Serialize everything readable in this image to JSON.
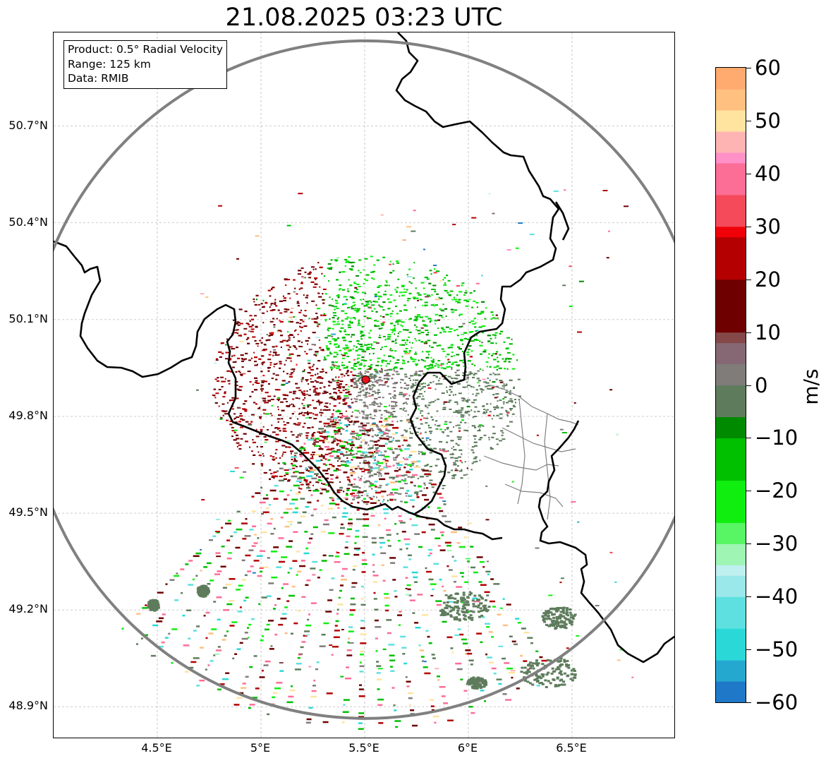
{
  "title": "21.08.2025 03:23 UTC",
  "info_box": {
    "product": "Product: 0.5° Radial Velocity",
    "range": "Range: 125 km",
    "data": "Data: RMIB"
  },
  "map": {
    "lon_range": [
      4.0,
      7.0
    ],
    "lat_range": [
      48.8,
      50.99
    ],
    "radar_site": {
      "lon": 5.505,
      "lat": 49.914
    },
    "range_km": 125,
    "lat_ticks": [
      {
        "value": 50.7,
        "label": "50.7°N"
      },
      {
        "value": 50.4,
        "label": "50.4°N"
      },
      {
        "value": 50.1,
        "label": "50.1°N"
      },
      {
        "value": 49.8,
        "label": "49.8°N"
      },
      {
        "value": 49.5,
        "label": "49.5°N"
      },
      {
        "value": 49.2,
        "label": "49.2°N"
      },
      {
        "value": 48.9,
        "label": "48.9°N"
      }
    ],
    "lon_ticks": [
      {
        "value": 4.5,
        "label": "4.5°E"
      },
      {
        "value": 5.0,
        "label": "5°E"
      },
      {
        "value": 5.5,
        "label": "5.5°E"
      },
      {
        "value": 6.0,
        "label": "6°E"
      },
      {
        "value": 6.5,
        "label": "6.5°E"
      }
    ],
    "colors": {
      "range_ring": "#808080",
      "border": "#000000",
      "region_border": "#808080",
      "grid": "#b0b0b0",
      "radar_marker": "#e8141e"
    }
  },
  "colorbar": {
    "unit": "m/s",
    "min": -60,
    "max": 60,
    "ticks": [
      {
        "value": 60,
        "label": "60"
      },
      {
        "value": 50,
        "label": "50"
      },
      {
        "value": 40,
        "label": "40"
      },
      {
        "value": 30,
        "label": "30"
      },
      {
        "value": 20,
        "label": "20"
      },
      {
        "value": 10,
        "label": "10"
      },
      {
        "value": 0,
        "label": "0"
      },
      {
        "value": -10,
        "label": "−10"
      },
      {
        "value": -20,
        "label": "−20"
      },
      {
        "value": -30,
        "label": "−30"
      },
      {
        "value": -40,
        "label": "−40"
      },
      {
        "value": -50,
        "label": "−50"
      },
      {
        "value": -60,
        "label": "−60"
      }
    ],
    "stops": [
      {
        "value": -60,
        "color": "#1f78c8"
      },
      {
        "value": -56,
        "color": "#24a8d0"
      },
      {
        "value": -52,
        "color": "#2ad8d8"
      },
      {
        "value": -46,
        "color": "#5ee0e0"
      },
      {
        "value": -40,
        "color": "#9ae8ea"
      },
      {
        "value": -36,
        "color": "#bff0f0"
      },
      {
        "value": -34,
        "color": "#9ef5b4"
      },
      {
        "value": -30,
        "color": "#58f564"
      },
      {
        "value": -26,
        "color": "#10ee10"
      },
      {
        "value": -18,
        "color": "#00c000"
      },
      {
        "value": -10,
        "color": "#008a00"
      },
      {
        "value": -6,
        "color": "#005c00"
      },
      {
        "value": -5.5,
        "color": "#5e7c5c"
      },
      {
        "value": 0,
        "color": "#7f7c7a"
      },
      {
        "value": 4,
        "color": "#866874"
      },
      {
        "value": 8,
        "color": "#844848"
      },
      {
        "value": 10,
        "color": "#6e0000"
      },
      {
        "value": 20,
        "color": "#b40000"
      },
      {
        "value": 28,
        "color": "#f00008"
      },
      {
        "value": 30,
        "color": "#f54a5a"
      },
      {
        "value": 36,
        "color": "#fc6e96"
      },
      {
        "value": 42,
        "color": "#ff90c8"
      },
      {
        "value": 44,
        "color": "#ffb4b4"
      },
      {
        "value": 48,
        "color": "#ffe4a0"
      },
      {
        "value": 52,
        "color": "#ffc080"
      },
      {
        "value": 56,
        "color": "#ffaa6e"
      },
      {
        "value": 60,
        "color": "#ff9a58"
      }
    ]
  }
}
